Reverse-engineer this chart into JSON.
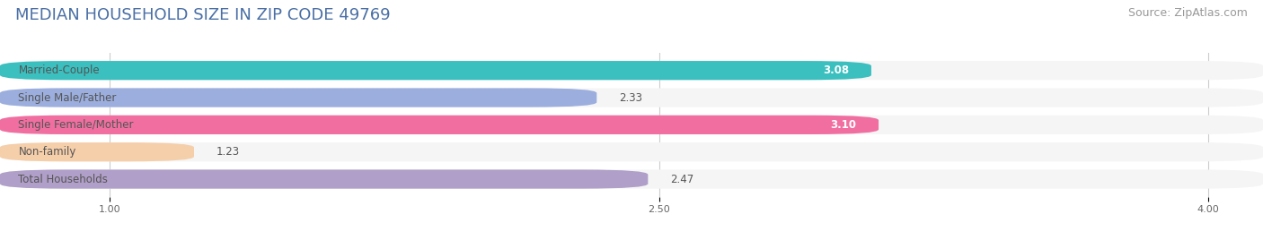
{
  "title": "MEDIAN HOUSEHOLD SIZE IN ZIP CODE 49769",
  "source": "Source: ZipAtlas.com",
  "categories": [
    "Married-Couple",
    "Single Male/Father",
    "Single Female/Mother",
    "Non-family",
    "Total Households"
  ],
  "values": [
    3.08,
    2.33,
    3.1,
    1.23,
    2.47
  ],
  "bar_colors": [
    "#3bbfbf",
    "#9baedd",
    "#f06fa0",
    "#f5ceaa",
    "#b09fc8"
  ],
  "xlim": [
    0.7,
    4.15
  ],
  "xticks": [
    1.0,
    2.5,
    4.0
  ],
  "xtick_labels": [
    "1.00",
    "2.50",
    "4.00"
  ],
  "background_color": "#ffffff",
  "bar_bg_color": "#f0f0f0",
  "title_fontsize": 13,
  "source_fontsize": 9,
  "label_fontsize": 8.5,
  "value_fontsize": 8.5,
  "title_color": "#4a6fa5",
  "source_color": "#999999",
  "label_color": "#555555",
  "grid_color": "#cccccc"
}
